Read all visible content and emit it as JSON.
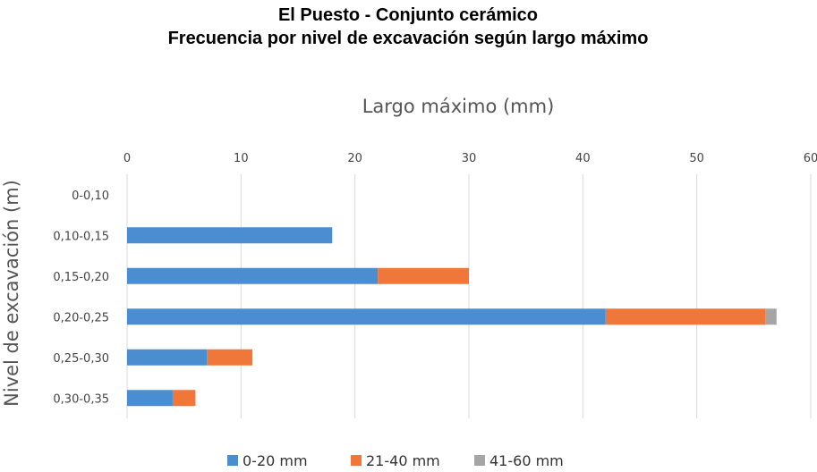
{
  "chart_data": {
    "type": "bar",
    "orientation": "horizontal",
    "stacked": true,
    "title": "El Puesto - Conjunto cerámico",
    "subtitle": "Frecuencia por nivel de excavación según largo máximo",
    "xlabel": "Largo máximo (mm)",
    "ylabel": "Nivel de excavación (m)",
    "xlim": [
      0,
      60
    ],
    "xticks": [
      "0",
      "10",
      "20",
      "30",
      "40",
      "50",
      "60"
    ],
    "x_axis_position": "top",
    "grid": true,
    "legend_position": "bottom",
    "categories": [
      "0-0,10",
      "0,10-0,15",
      "0,15-0,20",
      "0,20-0,25",
      "0,25-0,30",
      "0,30-0,35"
    ],
    "series": [
      {
        "name": "0-20 mm",
        "color": "#4a8dd0",
        "values": [
          0,
          18,
          22,
          42,
          7,
          4
        ]
      },
      {
        "name": "21-40 mm",
        "color": "#f0773a",
        "values": [
          0,
          0,
          8,
          14,
          4,
          2
        ]
      },
      {
        "name": "41-60 mm",
        "color": "#a5a5a5",
        "values": [
          0,
          0,
          0,
          1,
          0,
          0
        ]
      }
    ]
  }
}
